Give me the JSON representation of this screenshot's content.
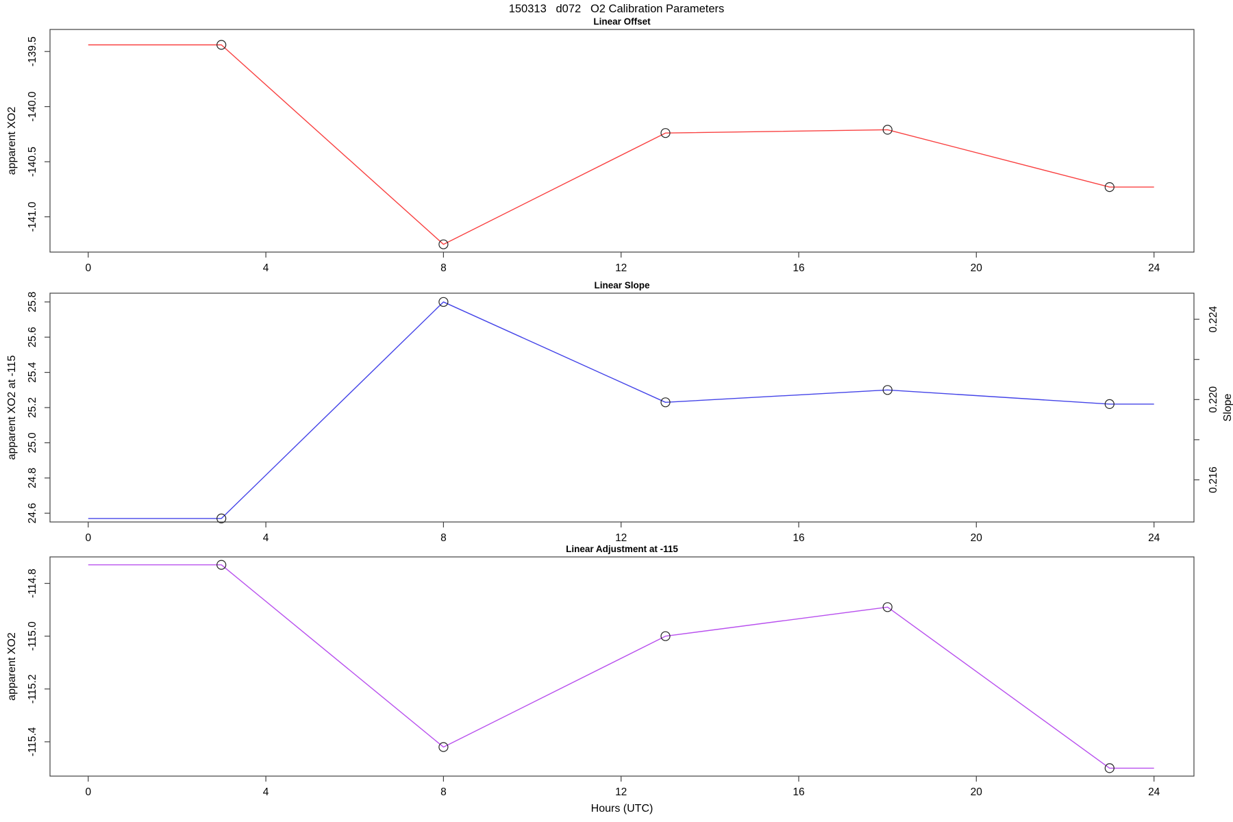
{
  "figure": {
    "title": "150313   d072   O2 Calibration Parameters",
    "xlabel": "Hours (UTC)",
    "x_ticks": [
      0,
      4,
      8,
      12,
      16,
      20,
      24
    ],
    "x_range": [
      -0.86,
      24.9
    ]
  },
  "colors": {
    "offset_line": "#f94040",
    "slope_line": "#4343e8",
    "adjustment_line": "#b84fee",
    "axis": "#404040",
    "marker": "#222222",
    "text": "#000000"
  },
  "chart_data": [
    {
      "type": "line",
      "title": "Linear Offset",
      "ylabel": "apparent XO2",
      "color": "#f94040",
      "x": [
        0,
        3,
        8,
        13,
        18,
        23,
        24
      ],
      "y": [
        -139.44,
        -139.44,
        -141.25,
        -140.24,
        -140.21,
        -140.73,
        -140.73
      ],
      "marker_points": {
        "x": [
          3,
          8,
          13,
          18,
          23
        ],
        "y": [
          -139.44,
          -141.25,
          -140.24,
          -140.21,
          -140.73
        ]
      },
      "y_ticks": [
        -141.0,
        -140.5,
        -140.0,
        -139.5
      ],
      "y_tick_labels": [
        "-141.0",
        "-140.5",
        "-140.0",
        "-139.5"
      ],
      "y_range": [
        -141.32,
        -139.3
      ],
      "grid": false,
      "legend": false
    },
    {
      "type": "line",
      "title": "Linear Slope",
      "ylabel": "apparent XO2 at -115",
      "color": "#4343e8",
      "x": [
        0,
        3,
        8,
        13,
        18,
        23,
        24
      ],
      "y": [
        24.57,
        24.57,
        25.8,
        25.23,
        25.3,
        25.22,
        25.22
      ],
      "marker_points": {
        "x": [
          3,
          8,
          13,
          18,
          23
        ],
        "y": [
          24.57,
          25.8,
          25.23,
          25.3,
          25.22
        ]
      },
      "y_ticks": [
        24.6,
        24.8,
        25.0,
        25.2,
        25.4,
        25.6,
        25.8
      ],
      "y_tick_labels": [
        "24.6",
        "24.8",
        "25.0",
        "25.2",
        "25.4",
        "25.6",
        "25.8"
      ],
      "y_range": [
        24.55,
        25.85
      ],
      "right_axis": {
        "label": "Slope",
        "ticks": [
          0.216,
          0.22,
          0.224
        ],
        "tick_labels": [
          "0.216",
          "0.220",
          "0.224"
        ],
        "minor_ticks": [
          0.218,
          0.222
        ],
        "range": [
          0.2139,
          0.2253
        ]
      },
      "grid": false,
      "legend": false
    },
    {
      "type": "line",
      "title": "Linear Adjustment at -115",
      "ylabel": "apparent XO2",
      "color": "#b84fee",
      "x": [
        0,
        3,
        8,
        13,
        18,
        23,
        24
      ],
      "y": [
        -114.73,
        -114.73,
        -115.42,
        -115.0,
        -114.89,
        -115.5,
        -115.5
      ],
      "marker_points": {
        "x": [
          3,
          8,
          13,
          18,
          23
        ],
        "y": [
          -114.73,
          -115.42,
          -115.0,
          -114.89,
          -115.5
        ]
      },
      "y_ticks": [
        -115.4,
        -115.2,
        -115.0,
        -114.8
      ],
      "y_tick_labels": [
        "-115.4",
        "-115.2",
        "-115.0",
        "-114.8"
      ],
      "y_range": [
        -115.53,
        -114.7
      ],
      "grid": false,
      "legend": false
    }
  ]
}
